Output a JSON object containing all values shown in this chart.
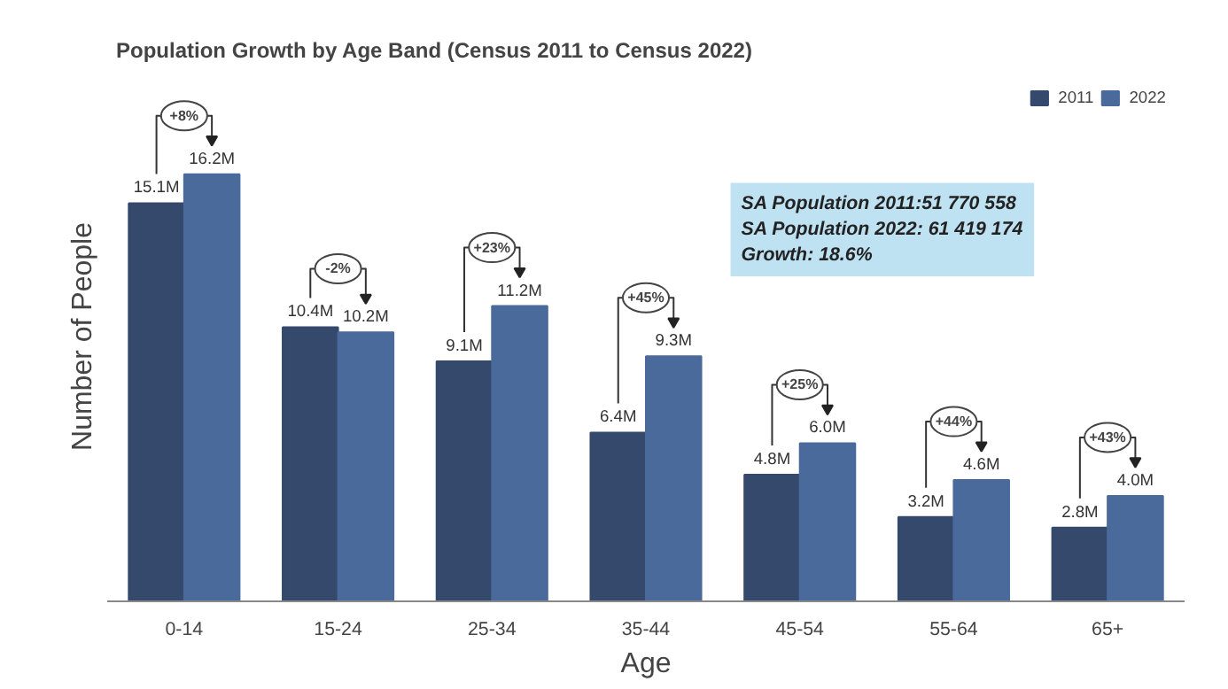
{
  "chart_data": {
    "type": "bar",
    "title": "Population Growth by Age Band (Census 2011 to Census 2022)",
    "xlabel": "Age",
    "ylabel": "Number of People",
    "categories": [
      "0-14",
      "15-24",
      "25-34",
      "35-44",
      "45-54",
      "55-64",
      "65+"
    ],
    "series": [
      {
        "name": "2011",
        "color": "#34496b",
        "values": [
          15.1,
          10.4,
          9.1,
          6.4,
          4.8,
          3.2,
          2.8
        ],
        "value_labels": [
          "15.1M",
          "10.4M",
          "9.1M",
          "6.4M",
          "4.8M",
          "3.2M",
          "2.8M"
        ]
      },
      {
        "name": "2022",
        "color": "#4a6a9c",
        "values": [
          16.2,
          10.2,
          11.2,
          9.3,
          6.0,
          4.6,
          4.0
        ],
        "value_labels": [
          "16.2M",
          "10.2M",
          "11.2M",
          "9.3M",
          "6.0M",
          "4.6M",
          "4.0M"
        ]
      }
    ],
    "annotations": [
      "+8%",
      "-2%",
      "+23%",
      "+45%",
      "+25%",
      "+44%",
      "+43%",
      "SA Population 2011:51 770 558",
      "SA Population 2022: 61 419 174",
      "Growth: 18.6%"
    ],
    "legend": "top right",
    "grid": false
  }
}
